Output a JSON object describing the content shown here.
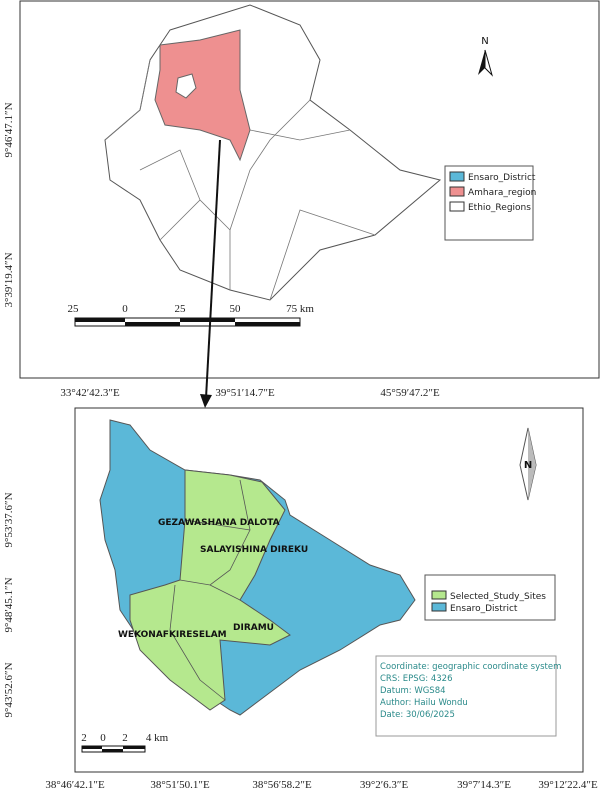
{
  "top_map": {
    "north": "N",
    "legend": [
      "Ensaro_District",
      "Amhara_region",
      "Ethio_Regions"
    ],
    "scale_labels": [
      "25",
      "0",
      "25",
      "50",
      "75 km"
    ],
    "lat_labels": [
      "9°46′47.1″N",
      "3°39′19.4″N"
    ],
    "lon_labels": [
      "33°42′42.3″E",
      "39°51′14.7″E",
      "45°59′47.2″E"
    ]
  },
  "bottom_map": {
    "north": "N",
    "site_labels": [
      "GEZAWASHANA DALOTA",
      "SALAYISHINA DIREKU",
      "DIRAMU",
      "WEKONAFKIRESELAM"
    ],
    "legend": [
      "Selected_Study_Sites",
      "Ensaro_District"
    ],
    "info": [
      "Coordinate: geographic coordinate system",
      "CRS: EPSG: 4326",
      "Datum: WGS84",
      "Author: Hailu Wondu",
      "Date: 30/06/2025"
    ],
    "scale_labels": [
      "2",
      "0",
      "2",
      "4 km"
    ],
    "lat_labels": [
      "9°53′37.6″N",
      "9°48′45.1″N",
      "9°43′52.6″N"
    ],
    "lon_labels": [
      "38°46′42.1″E",
      "38°51′50.1″E",
      "38°56′58.2″E",
      "39°2′6.3″E",
      "39°7′14.3″E",
      "39°12′22.4″E"
    ]
  }
}
